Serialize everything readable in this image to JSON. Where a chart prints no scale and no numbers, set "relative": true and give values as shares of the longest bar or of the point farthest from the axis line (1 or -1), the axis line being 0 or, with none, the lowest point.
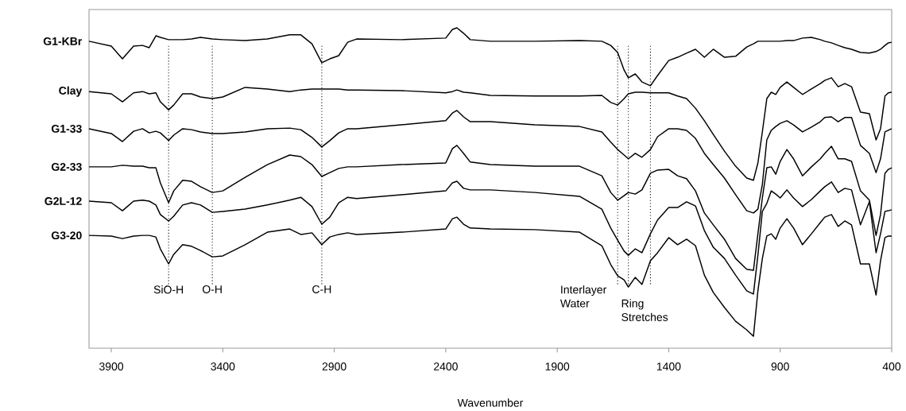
{
  "chart_data": {
    "type": "line",
    "relative": true,
    "xlabel": "Wavenumber",
    "xlim": [
      4000,
      400
    ],
    "xticks": [
      3900,
      3400,
      2900,
      2400,
      1900,
      1400,
      900,
      400
    ],
    "line_style": "solid",
    "x": [
      4000,
      3900,
      3850,
      3800,
      3760,
      3730,
      3700,
      3680,
      3643,
      3620,
      3580,
      3540,
      3500,
      3447,
      3400,
      3300,
      3200,
      3100,
      3050,
      3000,
      2956,
      2920,
      2880,
      2840,
      2800,
      2600,
      2400,
      2370,
      2350,
      2320,
      2290,
      2200,
      2000,
      1800,
      1700,
      1660,
      1629,
      1600,
      1581,
      1550,
      1520,
      1482,
      1450,
      1400,
      1360,
      1320,
      1280,
      1240,
      1200,
      1150,
      1100,
      1050,
      1020,
      1000,
      980,
      960,
      940,
      920,
      900,
      870,
      840,
      800,
      760,
      720,
      700,
      670,
      640,
      610,
      580,
      540,
      500,
      470,
      450,
      430,
      415,
      400
    ],
    "series": [
      {
        "name": "G1-KBr",
        "color": "#000000",
        "values": [
          0.958,
          0.943,
          0.903,
          0.943,
          0.945,
          0.938,
          0.975,
          0.97,
          0.963,
          0.963,
          0.963,
          0.965,
          0.97,
          0.965,
          0.963,
          0.96,
          0.965,
          0.978,
          0.978,
          0.95,
          0.891,
          0.903,
          0.913,
          0.955,
          0.965,
          0.963,
          0.968,
          0.995,
          1,
          0.983,
          0.963,
          0.958,
          0.958,
          0.96,
          0.958,
          0.945,
          0.923,
          0.868,
          0.844,
          0.856,
          0.831,
          0.819,
          0.851,
          0.898,
          0.908,
          0.921,
          0.933,
          0.908,
          0.933,
          0.908,
          0.911,
          0.94,
          0.95,
          0.958,
          0.958,
          0.958,
          0.958,
          0.958,
          0.958,
          0.96,
          0.96,
          0.968,
          0.97,
          0.963,
          0.958,
          0.953,
          0.945,
          0.938,
          0.933,
          0.923,
          0.921,
          0.926,
          0.933,
          0.945,
          0.953,
          0.955
        ]
      },
      {
        "name": "Clay",
        "color": "#000000",
        "values": [
          0.801,
          0.794,
          0.769,
          0.797,
          0.801,
          0.794,
          0.797,
          0.769,
          0.744,
          0.759,
          0.794,
          0.794,
          0.784,
          0.779,
          0.784,
          0.814,
          0.809,
          0.801,
          0.806,
          0.809,
          0.809,
          0.809,
          0.809,
          0.806,
          0.806,
          0.804,
          0.797,
          0.801,
          0.806,
          0.799,
          0.797,
          0.789,
          0.787,
          0.787,
          0.789,
          0.767,
          0.759,
          0.779,
          0.794,
          0.799,
          0.799,
          0.797,
          0.797,
          0.797,
          0.787,
          0.779,
          0.749,
          0.71,
          0.667,
          0.615,
          0.568,
          0.531,
          0.524,
          0.578,
          0.675,
          0.779,
          0.799,
          0.792,
          0.814,
          0.831,
          0.814,
          0.792,
          0.809,
          0.826,
          0.836,
          0.844,
          0.816,
          0.826,
          0.816,
          0.737,
          0.732,
          0.65,
          0.685,
          0.787,
          0.797,
          0.799
        ]
      },
      {
        "name": "G1-33",
        "color": "#000000",
        "values": [
          0.685,
          0.67,
          0.645,
          0.677,
          0.685,
          0.672,
          0.677,
          0.672,
          0.648,
          0.665,
          0.685,
          0.682,
          0.675,
          0.67,
          0.67,
          0.675,
          0.685,
          0.687,
          0.682,
          0.658,
          0.628,
          0.648,
          0.672,
          0.685,
          0.685,
          0.697,
          0.71,
          0.734,
          0.742,
          0.722,
          0.707,
          0.707,
          0.697,
          0.692,
          0.675,
          0.643,
          0.62,
          0.603,
          0.591,
          0.608,
          0.596,
          0.62,
          0.66,
          0.685,
          0.685,
          0.68,
          0.655,
          0.608,
          0.573,
          0.531,
          0.479,
          0.429,
          0.422,
          0.434,
          0.511,
          0.65,
          0.68,
          0.692,
          0.702,
          0.71,
          0.697,
          0.675,
          0.69,
          0.707,
          0.72,
          0.722,
          0.707,
          0.72,
          0.72,
          0.633,
          0.608,
          0.548,
          0.591,
          0.675,
          0.68,
          0.685
        ]
      },
      {
        "name": "G2-33",
        "color": "#000000",
        "values": [
          0.566,
          0.566,
          0.571,
          0.568,
          0.568,
          0.563,
          0.563,
          0.516,
          0.454,
          0.491,
          0.524,
          0.521,
          0.504,
          0.486,
          0.491,
          0.533,
          0.573,
          0.603,
          0.598,
          0.573,
          0.536,
          0.548,
          0.561,
          0.566,
          0.566,
          0.573,
          0.578,
          0.623,
          0.633,
          0.608,
          0.581,
          0.573,
          0.568,
          0.568,
          0.538,
          0.486,
          0.462,
          0.476,
          0.486,
          0.481,
          0.494,
          0.546,
          0.556,
          0.558,
          0.538,
          0.529,
          0.491,
          0.422,
          0.385,
          0.34,
          0.28,
          0.246,
          0.243,
          0.357,
          0.469,
          0.563,
          0.566,
          0.543,
          0.583,
          0.62,
          0.591,
          0.538,
          0.566,
          0.591,
          0.608,
          0.63,
          0.591,
          0.591,
          0.583,
          0.491,
          0.462,
          0.352,
          0.417,
          0.546,
          0.558,
          0.563
        ]
      },
      {
        "name": "G2L-12",
        "color": "#000000",
        "values": [
          0.459,
          0.454,
          0.429,
          0.459,
          0.462,
          0.459,
          0.447,
          0.417,
          0.397,
          0.412,
          0.447,
          0.454,
          0.447,
          0.424,
          0.427,
          0.434,
          0.447,
          0.462,
          0.471,
          0.442,
          0.387,
          0.409,
          0.454,
          0.471,
          0.467,
          0.479,
          0.491,
          0.516,
          0.521,
          0.499,
          0.494,
          0.494,
          0.486,
          0.474,
          0.434,
          0.375,
          0.337,
          0.303,
          0.29,
          0.31,
          0.298,
          0.357,
          0.4,
          0.439,
          0.439,
          0.457,
          0.444,
          0.367,
          0.315,
          0.28,
          0.228,
          0.179,
          0.169,
          0.29,
          0.427,
          0.452,
          0.491,
          0.481,
          0.469,
          0.494,
          0.469,
          0.442,
          0.464,
          0.491,
          0.504,
          0.519,
          0.486,
          0.499,
          0.494,
          0.385,
          0.457,
          0.298,
          0.357,
          0.427,
          0.429,
          0.432
        ]
      },
      {
        "name": "G3-20",
        "color": "#000000",
        "values": [
          0.352,
          0.35,
          0.342,
          0.35,
          0.352,
          0.352,
          0.347,
          0.31,
          0.263,
          0.293,
          0.323,
          0.318,
          0.305,
          0.285,
          0.288,
          0.323,
          0.362,
          0.372,
          0.355,
          0.36,
          0.323,
          0.347,
          0.355,
          0.36,
          0.355,
          0.362,
          0.372,
          0.404,
          0.409,
          0.387,
          0.375,
          0.372,
          0.37,
          0.362,
          0.32,
          0.261,
          0.226,
          0.213,
          0.191,
          0.221,
          0.199,
          0.273,
          0.298,
          0.345,
          0.323,
          0.34,
          0.32,
          0.228,
          0.174,
          0.127,
          0.084,
          0.057,
          0.037,
          0.179,
          0.28,
          0.35,
          0.357,
          0.34,
          0.375,
          0.404,
          0.375,
          0.323,
          0.357,
          0.392,
          0.409,
          0.417,
          0.38,
          0.397,
          0.385,
          0.263,
          0.263,
          0.166,
          0.273,
          0.345,
          0.35,
          0.35
        ]
      }
    ],
    "ref_lines": [
      {
        "axis": "x",
        "value": 3643,
        "label": "SiO-H",
        "line_style": "dotted"
      },
      {
        "axis": "x",
        "value": 3447,
        "label": "O-H",
        "line_style": "dotted"
      },
      {
        "axis": "x",
        "value": 2956,
        "label": "C-H",
        "line_style": "dotted"
      },
      {
        "axis": "x",
        "value": 1629,
        "label": "Interlayer Water",
        "line_style": "dotted"
      },
      {
        "axis": "x",
        "value": 1581,
        "label": "Ring Stretches",
        "line_style": "dotted"
      },
      {
        "axis": "x",
        "value": 1482,
        "line_style": "dotted"
      }
    ]
  }
}
